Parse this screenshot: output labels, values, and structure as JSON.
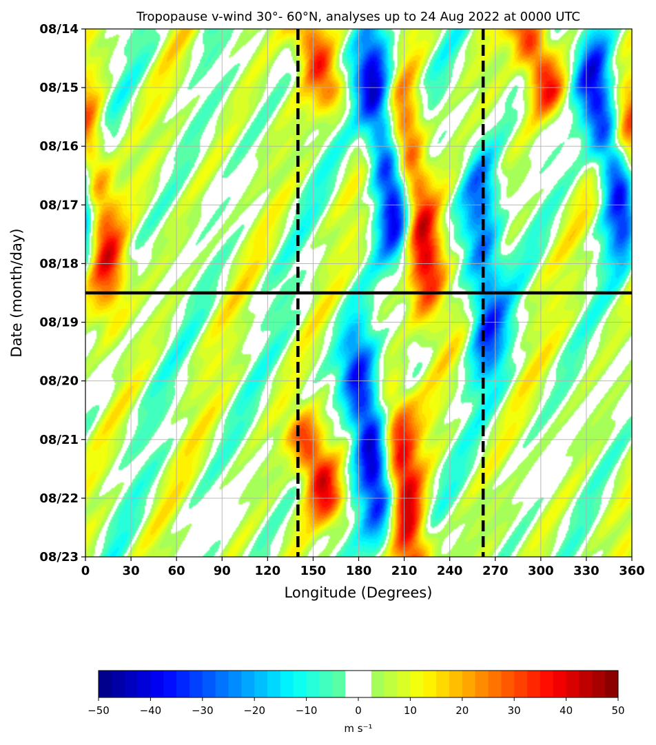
{
  "chart_data": {
    "type": "heatmap",
    "title": "Tropopause v-wind 30°- 60°N, analyses up to 24 Aug 2022 at 0000 UTC",
    "xlabel": "Longitude (Degrees)",
    "ylabel": "Date (month/day)",
    "xlim": [
      0,
      360
    ],
    "ylim_labels": [
      "08/14",
      "08/23"
    ],
    "x_ticks": [
      0,
      30,
      60,
      90,
      120,
      150,
      180,
      210,
      240,
      270,
      300,
      330,
      360
    ],
    "x_tick_labels": [
      "0",
      "30",
      "60",
      "90",
      "120",
      "150",
      "180",
      "210",
      "240",
      "270",
      "300",
      "330",
      "360"
    ],
    "y_ticks": [
      "08/14",
      "08/15",
      "08/16",
      "08/17",
      "08/18",
      "08/19",
      "08/20",
      "08/21",
      "08/22",
      "08/23"
    ],
    "grid": true,
    "y_axis_direction": "time increases downward",
    "vertical_reference_lines": [
      {
        "longitude": 140,
        "style": "dashed",
        "color": "#000000"
      },
      {
        "longitude": 262,
        "style": "dashed",
        "color": "#000000"
      }
    ],
    "horizontal_reference_line": {
      "date": "08/18",
      "day_fraction": 0.5,
      "color": "#000000"
    },
    "features": [
      {
        "sign": "negative",
        "peak": -45,
        "lon_start": 190,
        "date_start": "08/15",
        "lon_end": 205,
        "date_end": "08/17"
      },
      {
        "sign": "positive",
        "peak": 40,
        "lon_start": 210,
        "date_start": "08/16",
        "lon_end": 225,
        "date_end": "08/18"
      },
      {
        "sign": "negative",
        "peak": -40,
        "lon_start": 335,
        "date_start": "08/15",
        "lon_end": 355,
        "date_end": "08/17"
      },
      {
        "sign": "positive",
        "peak": 30,
        "lon_start": 0,
        "date_start": "08/16",
        "lon_end": 15,
        "date_end": "08/18"
      },
      {
        "sign": "negative",
        "peak": -40,
        "lon_start": 180,
        "date_start": "08/20",
        "lon_end": 195,
        "date_end": "08/22"
      },
      {
        "sign": "positive",
        "peak": 35,
        "lon_start": 205,
        "date_start": "08/21",
        "lon_end": 215,
        "date_end": "08/23"
      },
      {
        "sign": "positive",
        "peak": 30,
        "lon_start": 145,
        "date_start": "08/21",
        "lon_end": 160,
        "date_end": "08/22"
      },
      {
        "sign": "negative",
        "peak": -30,
        "lon_start": 260,
        "date_start": "08/17",
        "lon_end": 265,
        "date_end": "08/19"
      },
      {
        "sign": "positive",
        "peak": 30,
        "lon_start": 290,
        "date_start": "08/14",
        "lon_end": 305,
        "date_end": "08/15"
      },
      {
        "sign": "positive",
        "peak": 25,
        "lon_start": 145,
        "date_start": "08/14",
        "lon_end": 160,
        "date_end": "08/15"
      }
    ]
  },
  "colorbar": {
    "unit": "m s⁻¹",
    "tick_values": [
      -50,
      -40,
      -30,
      -20,
      -10,
      0,
      10,
      20,
      30,
      40,
      50
    ],
    "tick_labels": [
      "−50",
      "−40",
      "−30",
      "−20",
      "−10",
      "0",
      "10",
      "20",
      "30",
      "40",
      "50"
    ],
    "levels": [
      -50,
      50
    ],
    "bin_width": 2.5,
    "white_band": [
      -2.5,
      2.5
    ],
    "colormap": "jet"
  }
}
